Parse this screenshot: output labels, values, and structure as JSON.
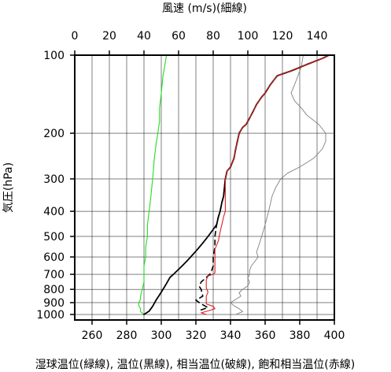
{
  "chart_data": {
    "type": "line",
    "title": "",
    "top_axis_label": "風速 (m/s)(細線)",
    "top_axis": {
      "min": 0,
      "max": 150,
      "ticks": [
        0,
        20,
        40,
        60,
        80,
        100,
        120,
        140
      ]
    },
    "bottom_axis": {
      "min": 250,
      "max": 400,
      "ticks": [
        260,
        280,
        300,
        320,
        340,
        360,
        380,
        400
      ]
    },
    "ylabel": "気圧(hPa)",
    "y_axis": {
      "scale": "log",
      "reversed": true,
      "min": 100,
      "max": 1050,
      "ticks": [
        100,
        200,
        300,
        400,
        500,
        600,
        700,
        800,
        900,
        1000
      ]
    },
    "xlabel": "湿球温位(緑線), 温位(黒線), 相当温位(破線), 飽和相当温位(赤線)",
    "grid": true,
    "colors": {
      "wind": "#808080",
      "wet_bulb": "#22dd22",
      "theta": "#000000",
      "theta_e": "#000000",
      "theta_es": "#dd2222"
    },
    "series": [
      {
        "key": "wind",
        "axis": "top",
        "style": "thin",
        "points": [
          [
            93,
            1000
          ],
          [
            97,
            975
          ],
          [
            95,
            950
          ],
          [
            92,
            925
          ],
          [
            90,
            900
          ],
          [
            93,
            875
          ],
          [
            96,
            850
          ],
          [
            95,
            825
          ],
          [
            97,
            800
          ],
          [
            100,
            775
          ],
          [
            101,
            750
          ],
          [
            100,
            725
          ],
          [
            101,
            700
          ],
          [
            101,
            675
          ],
          [
            102,
            650
          ],
          [
            104,
            625
          ],
          [
            106,
            600
          ],
          [
            105,
            575
          ],
          [
            106,
            550
          ],
          [
            107,
            525
          ],
          [
            108,
            500
          ],
          [
            109,
            475
          ],
          [
            110,
            450
          ],
          [
            111,
            425
          ],
          [
            112,
            400
          ],
          [
            113,
            375
          ],
          [
            114,
            350
          ],
          [
            116,
            325
          ],
          [
            119,
            300
          ],
          [
            123,
            285
          ],
          [
            130,
            270
          ],
          [
            138,
            250
          ],
          [
            143,
            230
          ],
          [
            145,
            215
          ],
          [
            145,
            200
          ],
          [
            141,
            185
          ],
          [
            134,
            170
          ],
          [
            131,
            160
          ],
          [
            127,
            150
          ],
          [
            125,
            140
          ],
          [
            127,
            130
          ],
          [
            129,
            120
          ],
          [
            131,
            110
          ],
          [
            132,
            100
          ]
        ]
      },
      {
        "key": "wet_bulb",
        "axis": "bottom",
        "style": "thin",
        "points": [
          [
            290,
            1000
          ],
          [
            288,
            975
          ],
          [
            288,
            950
          ],
          [
            287,
            925
          ],
          [
            287,
            900
          ],
          [
            288,
            875
          ],
          [
            288,
            850
          ],
          [
            289,
            800
          ],
          [
            290,
            750
          ],
          [
            290,
            700
          ],
          [
            290,
            650
          ],
          [
            291,
            600
          ],
          [
            291,
            550
          ],
          [
            292,
            500
          ],
          [
            292,
            450
          ],
          [
            293,
            400
          ],
          [
            294,
            350
          ],
          [
            295,
            300
          ],
          [
            296,
            250
          ],
          [
            297,
            220
          ],
          [
            298,
            200
          ],
          [
            299,
            180
          ],
          [
            299,
            160
          ],
          [
            300,
            140
          ],
          [
            301,
            120
          ],
          [
            302,
            110
          ],
          [
            303,
            100
          ]
        ]
      },
      {
        "key": "theta",
        "axis": "bottom",
        "style": "solid",
        "points": [
          [
            290,
            1000
          ],
          [
            293,
            970
          ],
          [
            295,
            930
          ],
          [
            297,
            880
          ],
          [
            299,
            840
          ],
          [
            301,
            800
          ],
          [
            303,
            760
          ],
          [
            305,
            720
          ],
          [
            307,
            700
          ],
          [
            309,
            680
          ],
          [
            312,
            650
          ],
          [
            315,
            620
          ],
          [
            317,
            600
          ],
          [
            321,
            560
          ],
          [
            324,
            530
          ],
          [
            327,
            500
          ],
          [
            330,
            470
          ],
          [
            332,
            450
          ],
          [
            333,
            420
          ],
          [
            334,
            400
          ],
          [
            335,
            370
          ],
          [
            336,
            350
          ],
          [
            337,
            300
          ],
          [
            338,
            280
          ],
          [
            340,
            270
          ],
          [
            342,
            250
          ],
          [
            343,
            230
          ],
          [
            345,
            200
          ],
          [
            347,
            190
          ],
          [
            349,
            185
          ],
          [
            351,
            175
          ],
          [
            353,
            165
          ],
          [
            355,
            155
          ],
          [
            358,
            145
          ],
          [
            360,
            140
          ],
          [
            363,
            130
          ],
          [
            367,
            120
          ],
          [
            375,
            115
          ],
          [
            385,
            108
          ],
          [
            393,
            103
          ],
          [
            397,
            100
          ]
        ]
      },
      {
        "key": "theta_e",
        "axis": "bottom",
        "style": "dashed",
        "points": [
          [
            323,
            960
          ],
          [
            327,
            940
          ],
          [
            325,
            925
          ],
          [
            322,
            900
          ],
          [
            320,
            880
          ],
          [
            324,
            850
          ],
          [
            323,
            800
          ],
          [
            322,
            780
          ],
          [
            323,
            750
          ],
          [
            326,
            720
          ],
          [
            328,
            700
          ],
          [
            329,
            680
          ],
          [
            330,
            650
          ],
          [
            330,
            600
          ],
          [
            331,
            550
          ],
          [
            331,
            500
          ],
          [
            332,
            450
          ],
          [
            333,
            420
          ],
          [
            334,
            400
          ],
          [
            335,
            370
          ],
          [
            336,
            350
          ],
          [
            337,
            300
          ],
          [
            338,
            280
          ],
          [
            340,
            270
          ],
          [
            342,
            250
          ],
          [
            343,
            230
          ],
          [
            345,
            200
          ],
          [
            347,
            190
          ],
          [
            349,
            185
          ],
          [
            351,
            175
          ],
          [
            353,
            165
          ],
          [
            355,
            155
          ],
          [
            358,
            145
          ],
          [
            360,
            140
          ],
          [
            363,
            130
          ],
          [
            367,
            120
          ],
          [
            375,
            115
          ],
          [
            385,
            108
          ],
          [
            393,
            103
          ],
          [
            397,
            100
          ]
        ]
      },
      {
        "key": "theta_es",
        "axis": "bottom",
        "style": "thin",
        "points": [
          [
            326,
            1000
          ],
          [
            323,
            985
          ],
          [
            328,
            965
          ],
          [
            331,
            950
          ],
          [
            330,
            930
          ],
          [
            326,
            910
          ],
          [
            326,
            880
          ],
          [
            326,
            850
          ],
          [
            327,
            820
          ],
          [
            326,
            790
          ],
          [
            326,
            760
          ],
          [
            326,
            735
          ],
          [
            327,
            710
          ],
          [
            330,
            700
          ],
          [
            331,
            690
          ],
          [
            331,
            650
          ],
          [
            331,
            600
          ],
          [
            331,
            560
          ],
          [
            333,
            520
          ],
          [
            334,
            480
          ],
          [
            335,
            450
          ],
          [
            336,
            420
          ],
          [
            337,
            400
          ],
          [
            337,
            350
          ],
          [
            337,
            300
          ],
          [
            338,
            280
          ],
          [
            340,
            270
          ],
          [
            342,
            250
          ],
          [
            343,
            230
          ],
          [
            345,
            200
          ],
          [
            347,
            190
          ],
          [
            349,
            185
          ],
          [
            351,
            175
          ],
          [
            353,
            165
          ],
          [
            355,
            155
          ],
          [
            358,
            145
          ],
          [
            360,
            140
          ],
          [
            363,
            130
          ],
          [
            367,
            120
          ],
          [
            375,
            115
          ],
          [
            385,
            108
          ],
          [
            393,
            103
          ],
          [
            397,
            100
          ]
        ]
      }
    ]
  }
}
